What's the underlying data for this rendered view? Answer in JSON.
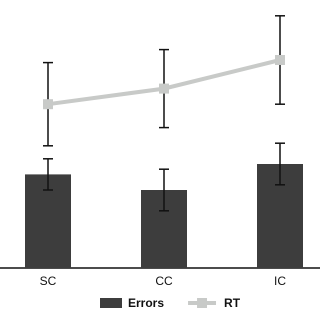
{
  "chart_data": {
    "type": "bar",
    "categories": [
      "SC",
      "CC",
      "IC"
    ],
    "ylim": [
      0,
      100
    ],
    "series": [
      {
        "name": "Errors",
        "type": "bar",
        "color": "#3d3d3d",
        "values": [
          36,
          30,
          40
        ],
        "errors": [
          6,
          8,
          8
        ]
      },
      {
        "name": "RT",
        "type": "line",
        "color": "#c8cac8",
        "values": [
          63,
          69,
          80
        ],
        "errors": [
          16,
          15,
          17
        ]
      }
    ]
  }
}
